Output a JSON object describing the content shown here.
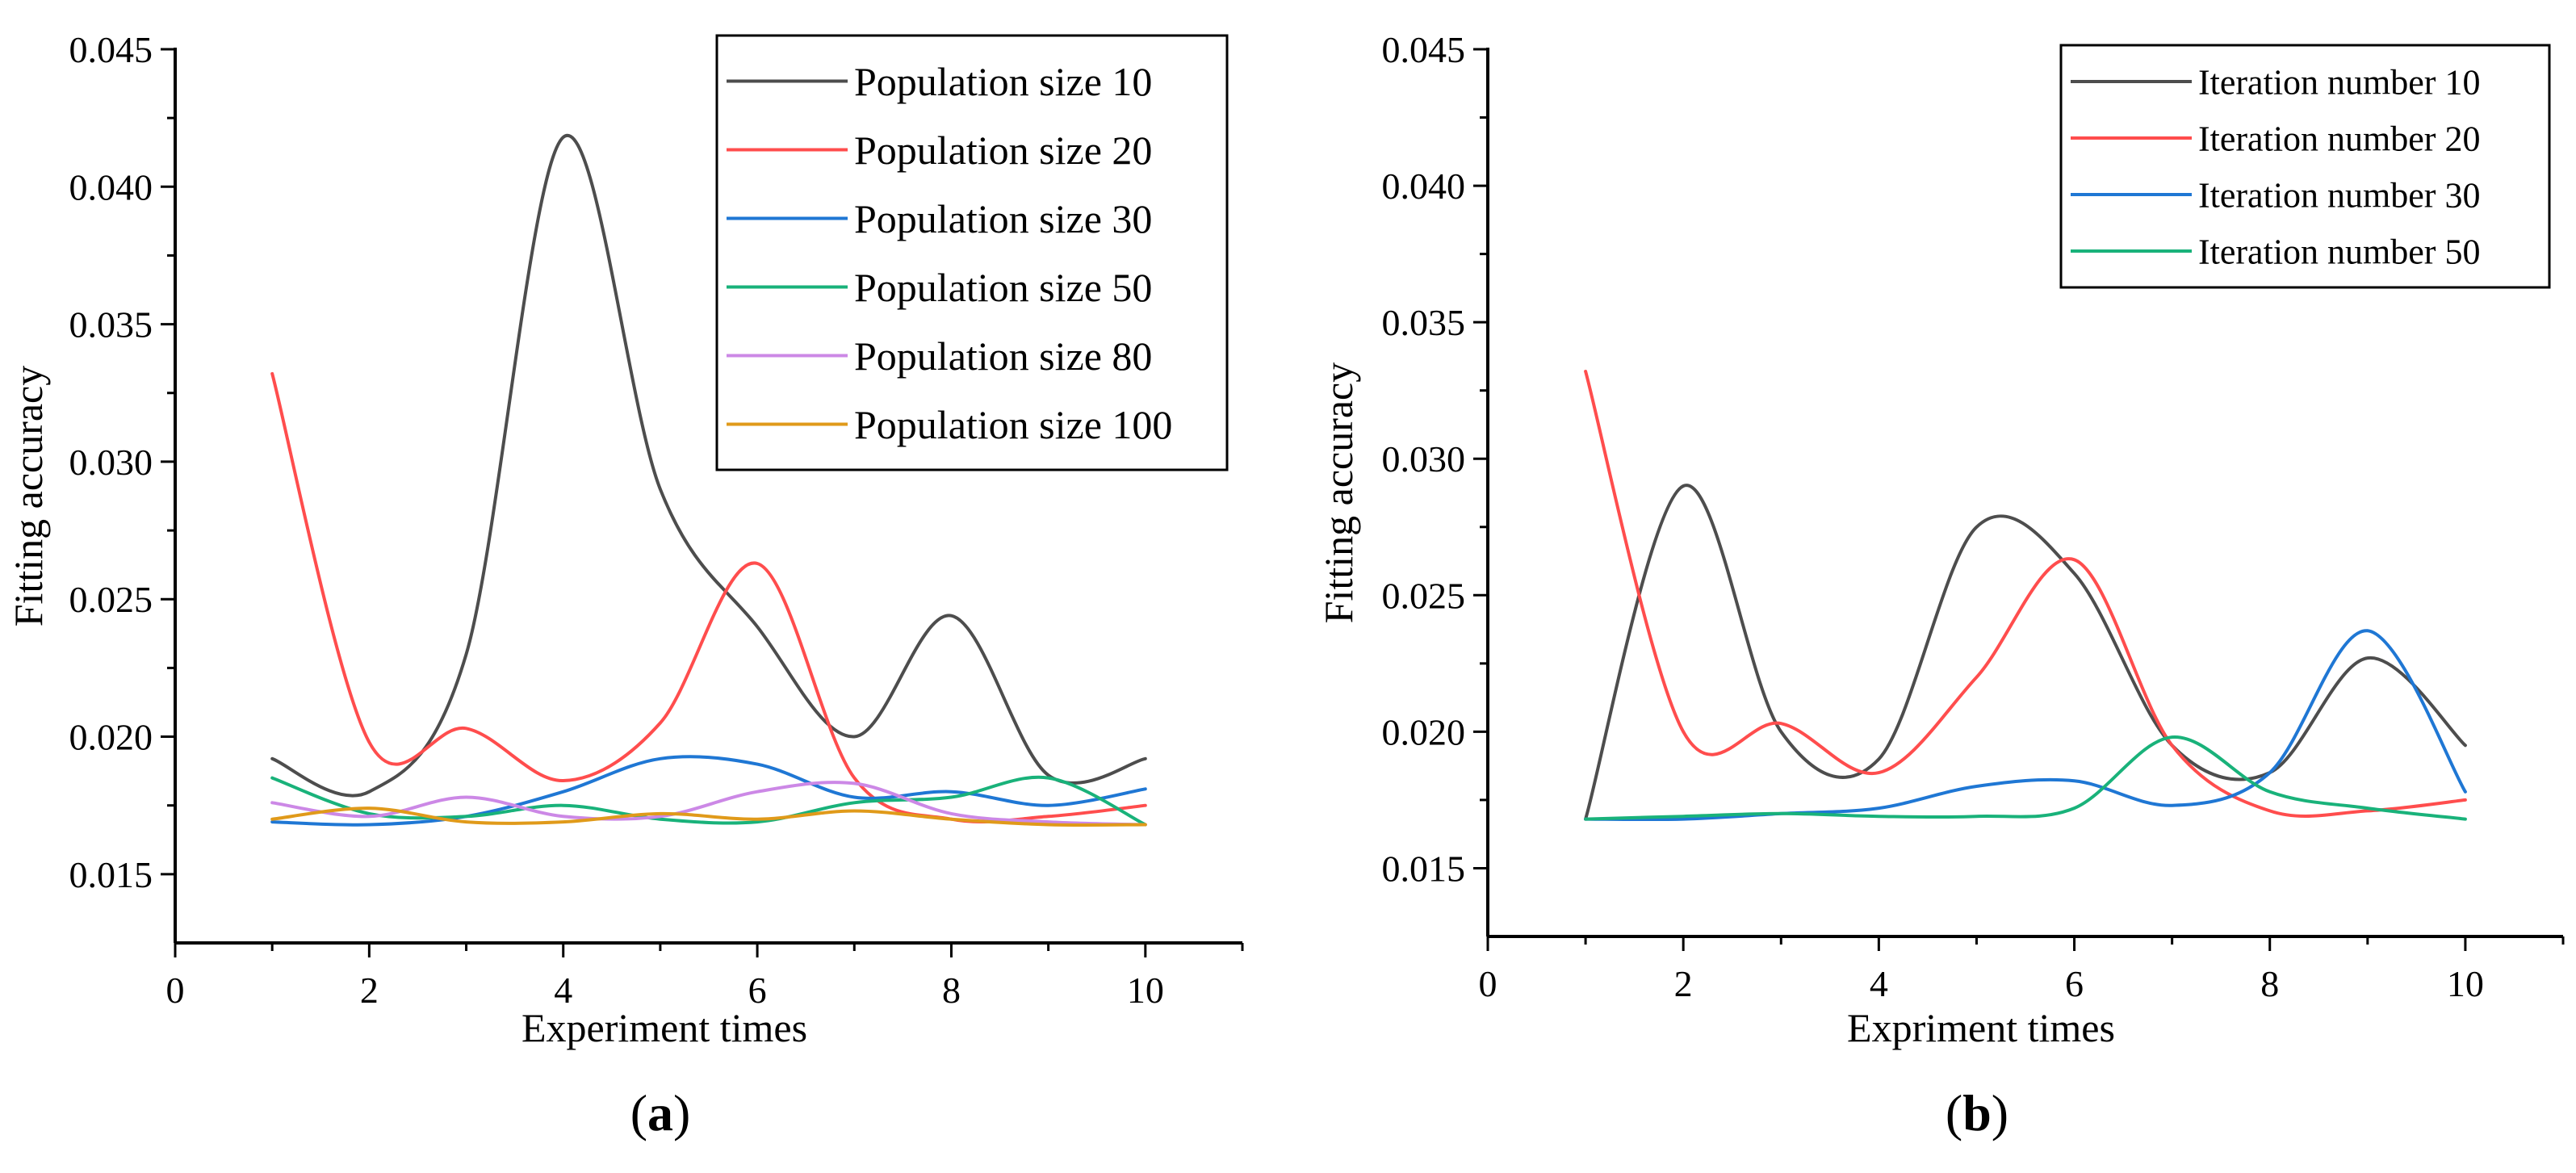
{
  "chart_data": [
    {
      "id": "a",
      "type": "line",
      "panel_label": "a",
      "title": "",
      "xlabel": "Experiment times",
      "ylabel": "Fitting accuracy",
      "xlim": [
        0,
        11
      ],
      "ylim": [
        0.0125,
        0.045
      ],
      "x_ticks": [
        0,
        2,
        4,
        6,
        8,
        10
      ],
      "x_tick_labels": [
        "0",
        "2",
        "4",
        "6",
        "8",
        "10"
      ],
      "y_ticks": [
        0.015,
        0.02,
        0.025,
        0.03,
        0.035,
        0.04,
        0.045
      ],
      "y_tick_labels": [
        "0.015",
        "0.020",
        "0.025",
        "0.030",
        "0.035",
        "0.040",
        "0.045"
      ],
      "grid": false,
      "legend_position": "top-right",
      "x": [
        1,
        2,
        3,
        4,
        5,
        6,
        7,
        8,
        9,
        10
      ],
      "series": [
        {
          "name": "Population size 10",
          "color": "#4d4d4d",
          "values": [
            0.0192,
            0.018,
            0.023,
            0.0418,
            0.029,
            0.024,
            0.02,
            0.0244,
            0.0186,
            0.0192
          ]
        },
        {
          "name": "Population size 20",
          "color": "#ff4d4d",
          "values": [
            0.0332,
            0.0198,
            0.0203,
            0.0184,
            0.0205,
            0.0263,
            0.0185,
            0.017,
            0.0171,
            0.0175
          ]
        },
        {
          "name": "Population size 30",
          "color": "#1f77d4",
          "values": [
            0.0169,
            0.0168,
            0.0171,
            0.018,
            0.0192,
            0.019,
            0.0178,
            0.018,
            0.0175,
            0.0181
          ]
        },
        {
          "name": "Population size 50",
          "color": "#19b27a",
          "values": [
            0.0185,
            0.0172,
            0.0171,
            0.0175,
            0.017,
            0.0169,
            0.0176,
            0.0178,
            0.0185,
            0.0168
          ]
        },
        {
          "name": "Population size 80",
          "color": "#cc88e6",
          "values": [
            0.0176,
            0.0171,
            0.0178,
            0.0171,
            0.0171,
            0.018,
            0.0183,
            0.0172,
            0.0169,
            0.0168
          ]
        },
        {
          "name": "Population size 100",
          "color": "#e09a1a",
          "values": [
            0.017,
            0.0174,
            0.0169,
            0.0169,
            0.0172,
            0.017,
            0.0173,
            0.017,
            0.0168,
            0.0168
          ]
        }
      ]
    },
    {
      "id": "b",
      "type": "line",
      "panel_label": "b",
      "title": "",
      "xlabel": "Expriment times",
      "ylabel": "Fitting accuracy",
      "xlim": [
        0,
        11
      ],
      "ylim": [
        0.0125,
        0.045
      ],
      "x_ticks": [
        0,
        2,
        4,
        6,
        8,
        10
      ],
      "x_tick_labels": [
        "0",
        "2",
        "4",
        "6",
        "8",
        "10"
      ],
      "y_ticks": [
        0.015,
        0.02,
        0.025,
        0.03,
        0.035,
        0.04,
        0.045
      ],
      "y_tick_labels": [
        "0.015",
        "0.020",
        "0.025",
        "0.030",
        "0.035",
        "0.040",
        "0.045"
      ],
      "grid": false,
      "legend_position": "top-right",
      "x": [
        1,
        2,
        3,
        4,
        5,
        6,
        7,
        8,
        9,
        10
      ],
      "series": [
        {
          "name": "Iteration number 10",
          "color": "#4d4d4d",
          "values": [
            0.0168,
            0.029,
            0.02,
            0.019,
            0.0275,
            0.0258,
            0.0195,
            0.0185,
            0.0227,
            0.0195
          ]
        },
        {
          "name": "Iteration number 20",
          "color": "#ff4d4d",
          "values": [
            0.0332,
            0.02,
            0.0203,
            0.0185,
            0.022,
            0.0263,
            0.0195,
            0.0171,
            0.0171,
            0.0175
          ]
        },
        {
          "name": "Iteration number 30",
          "color": "#1f77d4",
          "values": [
            0.0168,
            0.0168,
            0.017,
            0.0172,
            0.018,
            0.0182,
            0.0173,
            0.0185,
            0.0237,
            0.0178
          ]
        },
        {
          "name": "Iteration number 50",
          "color": "#19b27a",
          "values": [
            0.0168,
            0.0169,
            0.017,
            0.0169,
            0.0169,
            0.0172,
            0.0198,
            0.0178,
            0.0172,
            0.0168
          ]
        }
      ]
    }
  ]
}
